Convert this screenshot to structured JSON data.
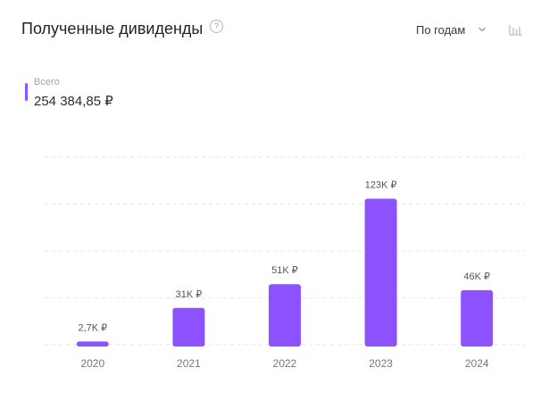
{
  "header": {
    "title": "Полученные дивиденды",
    "help_icon": "question-circle-icon",
    "help_glyph": "?",
    "period_select": {
      "selected": "По годам",
      "icon": "chevron-down-icon"
    },
    "chart_type_icon": "bar-chart-icon"
  },
  "summary": {
    "label": "Всего",
    "value": "254 384,85 ₽"
  },
  "colors": {
    "bar": "#8c52ff",
    "grid": "#e6e6e6",
    "axis_text": "#777777",
    "icon": "#b3b3b3"
  },
  "chart_data": {
    "type": "bar",
    "title": "",
    "xlabel": "",
    "ylabel": "",
    "categories": [
      "2020",
      "2021",
      "2022",
      "2023",
      "2024"
    ],
    "values": [
      2700,
      31000,
      51000,
      123000,
      46000
    ],
    "data_labels": [
      "2,7K ₽",
      "31K ₽",
      "51K ₽",
      "123K ₽",
      "46K ₽"
    ],
    "ylim": [
      0,
      158000
    ],
    "grid": true,
    "legend": "none"
  }
}
